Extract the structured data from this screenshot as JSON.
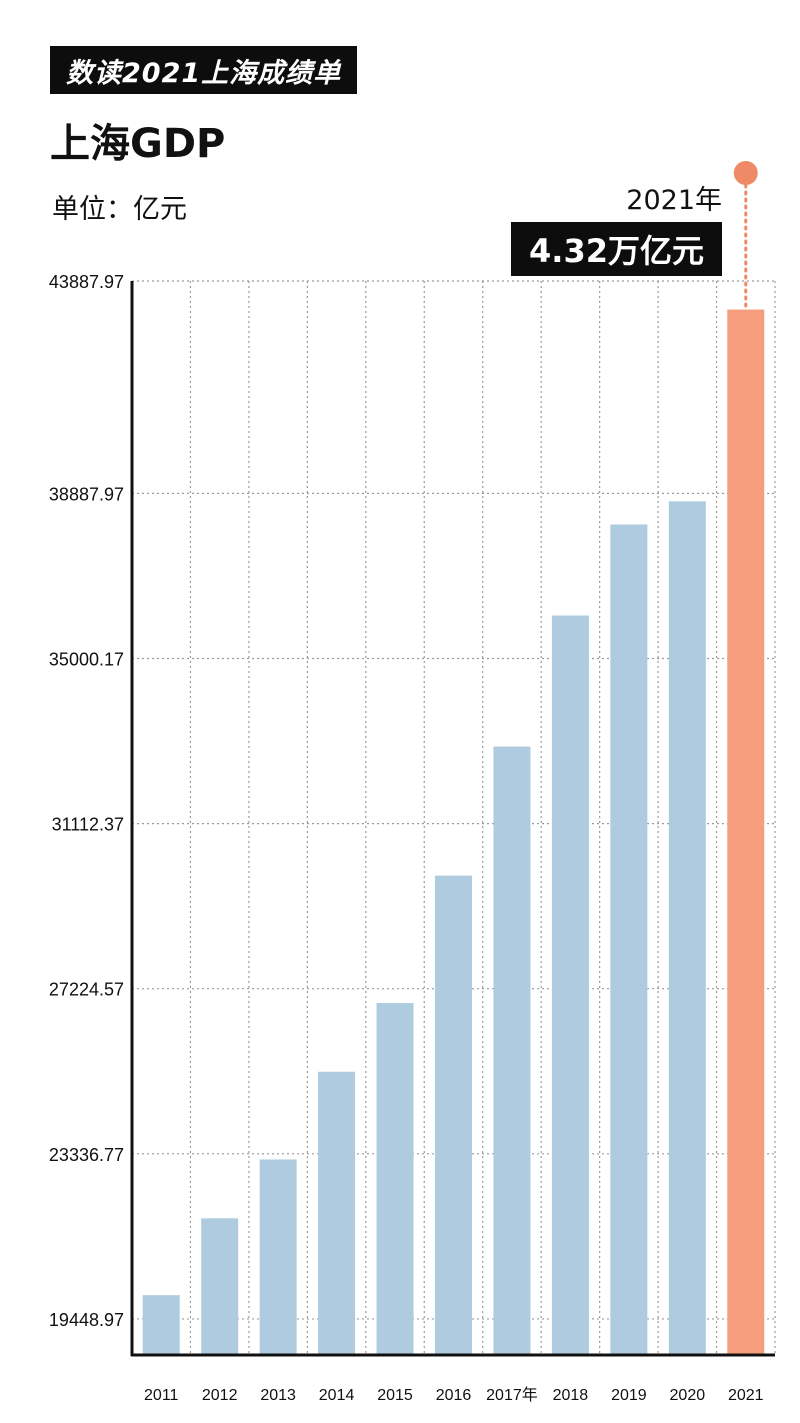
{
  "header": {
    "banner": "数读2021上海成绩单",
    "title": "上海GDP",
    "unit": "单位：亿元"
  },
  "callout": {
    "year": "2021年",
    "value": "4.32万亿元"
  },
  "colors": {
    "bar": "#aecbe0",
    "highlight": "#f59d7c",
    "marker": "#ee8a66",
    "axis": "#111111",
    "grid": "#9a9a9a"
  },
  "chart_data": {
    "type": "bar",
    "title": "上海GDP",
    "ylabel": "单位：亿元",
    "categories": [
      "2011",
      "2012",
      "2013",
      "2014",
      "2015",
      "2016",
      "2017年",
      "2018",
      "2019",
      "2020",
      "2021"
    ],
    "values": [
      20009,
      21818,
      23204,
      25269,
      26887,
      29887,
      32925,
      36012,
      38155,
      38701,
      43215
    ],
    "highlight_index": 10,
    "yticks": [
      "19448.97",
      "23336.77",
      "27224.57",
      "31112.37",
      "35000.17",
      "38887.97",
      "43887.97"
    ],
    "ylim": [
      18600,
      43887.97
    ],
    "grid": true
  }
}
